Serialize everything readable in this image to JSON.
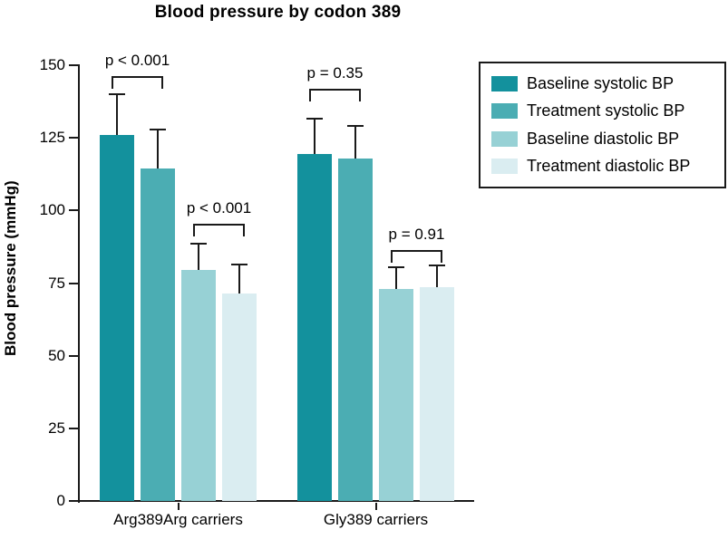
{
  "chart_data": {
    "type": "bar",
    "title": "Blood pressure by codon 389",
    "xlabel": "",
    "ylabel": "Blood pressure (mmHg)",
    "ylim": [
      0,
      150
    ],
    "yticks": [
      0,
      25,
      50,
      75,
      100,
      125,
      150
    ],
    "categories": [
      "Arg389Arg carriers",
      "Gly389 carriers"
    ],
    "series": [
      {
        "name": "Baseline systolic BP",
        "color": "#13919d",
        "values": [
          126,
          119.5
        ],
        "error_plus": [
          14,
          12
        ]
      },
      {
        "name": "Treatment systolic BP",
        "color": "#4badb3",
        "values": [
          114.5,
          118
        ],
        "error_plus": [
          13.5,
          11
        ]
      },
      {
        "name": "Baseline diastolic BP",
        "color": "#97d1d5",
        "values": [
          79.5,
          73
        ],
        "error_plus": [
          9,
          7.5
        ]
      },
      {
        "name": "Treatment diastolic BP",
        "color": "#daedf1",
        "values": [
          71.5,
          73.5
        ],
        "error_plus": [
          10,
          7.5
        ]
      }
    ],
    "comparisons": [
      {
        "label": "p < 0.001",
        "group": 0,
        "bars": [
          0,
          1
        ],
        "bracket_y": 146
      },
      {
        "label": "p < 0.001",
        "group": 0,
        "bars": [
          2,
          3
        ],
        "bracket_y": 95
      },
      {
        "label": "p = 0.35",
        "group": 1,
        "bars": [
          0,
          1
        ],
        "bracket_y": 141.5
      },
      {
        "label": "p = 0.91",
        "group": 1,
        "bars": [
          2,
          3
        ],
        "bracket_y": 86
      }
    ],
    "legend_position": "upper right",
    "grid": false,
    "axis_color": "#1a1a1a"
  }
}
